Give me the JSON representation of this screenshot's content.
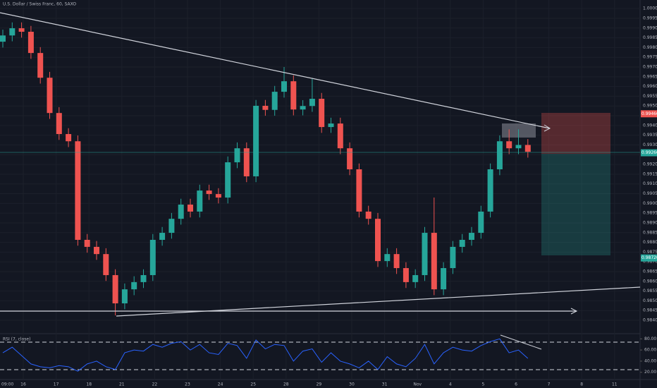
{
  "chart_data": {
    "type": "candlestick",
    "title": "U.S. Dollar / Swiss Franc, 60, SAXO",
    "up_color": "#26a69a",
    "down_color": "#ef5350",
    "ohlc": [
      [
        0.9983,
        0.99892,
        0.998,
        0.99862
      ],
      [
        0.99862,
        0.99929,
        0.99832,
        0.99899
      ],
      [
        0.99899,
        0.99929,
        0.99851,
        0.99881
      ],
      [
        0.99881,
        0.99911,
        0.99742,
        0.99772
      ],
      [
        0.99772,
        0.99802,
        0.99615,
        0.99645
      ],
      [
        0.99645,
        0.99675,
        0.99434,
        0.99464
      ],
      [
        0.99464,
        0.99494,
        0.99326,
        0.99356
      ],
      [
        0.99356,
        0.99386,
        0.99289,
        0.99319
      ],
      [
        0.99319,
        0.99349,
        0.98783,
        0.98813
      ],
      [
        0.98813,
        0.98843,
        0.98747,
        0.98777
      ],
      [
        0.98777,
        0.98807,
        0.9871,
        0.9874
      ],
      [
        0.9874,
        0.9877,
        0.98602,
        0.98632
      ],
      [
        0.98632,
        0.98662,
        0.98425,
        0.98487
      ],
      [
        0.98487,
        0.98589,
        0.98457,
        0.98559
      ],
      [
        0.98559,
        0.98626,
        0.98529,
        0.98596
      ],
      [
        0.98596,
        0.98662,
        0.98566,
        0.98632
      ],
      [
        0.98632,
        0.98843,
        0.98602,
        0.98813
      ],
      [
        0.98813,
        0.98879,
        0.98783,
        0.98849
      ],
      [
        0.98849,
        0.98951,
        0.98819,
        0.98921
      ],
      [
        0.98921,
        0.99024,
        0.98891,
        0.98994
      ],
      [
        0.98994,
        0.99024,
        0.98928,
        0.98958
      ],
      [
        0.98958,
        0.99096,
        0.98928,
        0.99066
      ],
      [
        0.99066,
        0.99096,
        0.99018,
        0.99048
      ],
      [
        0.99048,
        0.99078,
        0.99,
        0.9903
      ],
      [
        0.9903,
        0.99241,
        0.99,
        0.99211
      ],
      [
        0.99211,
        0.99313,
        0.99181,
        0.99283
      ],
      [
        0.99283,
        0.99313,
        0.99109,
        0.99139
      ],
      [
        0.99139,
        0.99531,
        0.99109,
        0.99501
      ],
      [
        0.99501,
        0.99531,
        0.9945,
        0.9948
      ],
      [
        0.9948,
        0.99603,
        0.9945,
        0.99573
      ],
      [
        0.99573,
        0.997,
        0.99543,
        0.99627
      ],
      [
        0.99627,
        0.99657,
        0.99452,
        0.99482
      ],
      [
        0.99482,
        0.9953,
        0.99452,
        0.995
      ],
      [
        0.995,
        0.9964,
        0.9947,
        0.99537
      ],
      [
        0.99537,
        0.99567,
        0.99362,
        0.99392
      ],
      [
        0.99392,
        0.9944,
        0.99362,
        0.9941
      ],
      [
        0.9941,
        0.9944,
        0.99253,
        0.99283
      ],
      [
        0.99283,
        0.99313,
        0.99145,
        0.99175
      ],
      [
        0.99175,
        0.99205,
        0.98928,
        0.98958
      ],
      [
        0.98958,
        0.98988,
        0.98891,
        0.98921
      ],
      [
        0.98921,
        0.98951,
        0.98674,
        0.98704
      ],
      [
        0.98704,
        0.9877,
        0.98674,
        0.9874
      ],
      [
        0.9874,
        0.9877,
        0.98638,
        0.98668
      ],
      [
        0.98668,
        0.98698,
        0.98566,
        0.98596
      ],
      [
        0.98596,
        0.98662,
        0.98566,
        0.98632
      ],
      [
        0.98632,
        0.98879,
        0.98602,
        0.98849
      ],
      [
        0.98849,
        0.9903,
        0.98529,
        0.98559
      ],
      [
        0.98559,
        0.98698,
        0.98529,
        0.98668
      ],
      [
        0.98668,
        0.98807,
        0.98638,
        0.98777
      ],
      [
        0.98777,
        0.98843,
        0.98747,
        0.98813
      ],
      [
        0.98813,
        0.98879,
        0.98783,
        0.98849
      ],
      [
        0.98849,
        0.98988,
        0.98819,
        0.98958
      ],
      [
        0.98958,
        0.99205,
        0.98928,
        0.99175
      ],
      [
        0.99175,
        0.99349,
        0.99145,
        0.99319
      ],
      [
        0.99319,
        0.9938,
        0.99253,
        0.99283
      ],
      [
        0.99283,
        0.9938,
        0.99253,
        0.993
      ],
      [
        0.993,
        0.9933,
        0.99235,
        0.99265
      ]
    ],
    "ylim": [
      0.98335,
      1.00044
    ],
    "yticks": [
      {
        "value": 0.984,
        "label": "0.98400"
      },
      {
        "value": 0.9845,
        "label": "0.98450"
      },
      {
        "value": 0.985,
        "label": "0.98500"
      },
      {
        "value": 0.9855,
        "label": "0.98550"
      },
      {
        "value": 0.986,
        "label": "0.98600"
      },
      {
        "value": 0.9865,
        "label": "0.98650"
      },
      {
        "value": 0.987,
        "label": "0.98700"
      },
      {
        "value": 0.9875,
        "label": "0.98750"
      },
      {
        "value": 0.988,
        "label": "0.98800"
      },
      {
        "value": 0.9885,
        "label": "0.98850"
      },
      {
        "value": 0.989,
        "label": "0.98900"
      },
      {
        "value": 0.9895,
        "label": "0.98950"
      },
      {
        "value": 0.99,
        "label": "0.99000"
      },
      {
        "value": 0.9905,
        "label": "0.99050"
      },
      {
        "value": 0.991,
        "label": "0.99100"
      },
      {
        "value": 0.9915,
        "label": "0.99150"
      },
      {
        "value": 0.992,
        "label": "0.99200"
      },
      {
        "value": 0.9925,
        "label": "0.99250"
      },
      {
        "value": 0.993,
        "label": "0.99300"
      },
      {
        "value": 0.9935,
        "label": "0.99350"
      },
      {
        "value": 0.994,
        "label": "0.99400"
      },
      {
        "value": 0.9945,
        "label": "0.99450"
      },
      {
        "value": 0.995,
        "label": "0.99500"
      },
      {
        "value": 0.9955,
        "label": "0.99550"
      },
      {
        "value": 0.996,
        "label": "0.99600"
      },
      {
        "value": 0.9965,
        "label": "0.99650"
      },
      {
        "value": 0.997,
        "label": "0.99700"
      },
      {
        "value": 0.9975,
        "label": "0.99750"
      },
      {
        "value": 0.998,
        "label": "0.99800"
      },
      {
        "value": 0.9985,
        "label": "0.99850"
      },
      {
        "value": 0.999,
        "label": "0.99900"
      },
      {
        "value": 0.9995,
        "label": "0.99950"
      },
      {
        "value": 1,
        "label": "1.00000"
      }
    ],
    "price_tags": [
      {
        "value": 0.9946,
        "label": "0.99460",
        "color": "#ef5350"
      },
      {
        "value": 0.9926,
        "label": "0.99260",
        "color": "#26a69a"
      },
      {
        "value": 0.9872,
        "label": "0.98720",
        "color": "#26a69a"
      }
    ],
    "time_labels": [
      "09:00",
      "16",
      "17",
      "18",
      "21",
      "22",
      "23",
      "24",
      "25",
      "28",
      "29",
      "30",
      "31",
      "Nov",
      "4",
      "5",
      "6",
      "7",
      "8",
      "11"
    ],
    "rsi": {
      "title": "RSI (7, close)",
      "color": "#2962ff",
      "values": [
        55,
        65,
        50,
        35,
        30,
        28,
        32,
        30,
        22,
        35,
        40,
        30,
        25,
        55,
        60,
        58,
        70,
        65,
        72,
        75,
        60,
        70,
        55,
        52,
        72,
        68,
        45,
        78,
        62,
        70,
        68,
        40,
        58,
        62,
        38,
        55,
        40,
        35,
        28,
        40,
        25,
        48,
        35,
        30,
        45,
        70,
        35,
        55,
        65,
        60,
        58,
        68,
        75,
        80,
        55,
        60,
        45
      ],
      "ylim": [
        7,
        88
      ],
      "yticks": [
        {
          "value": 20,
          "label": "20.00"
        },
        {
          "value": 40,
          "label": "40.00"
        },
        {
          "value": 60,
          "label": "60.00"
        },
        {
          "value": 80,
          "label": "80.00"
        }
      ]
    }
  }
}
